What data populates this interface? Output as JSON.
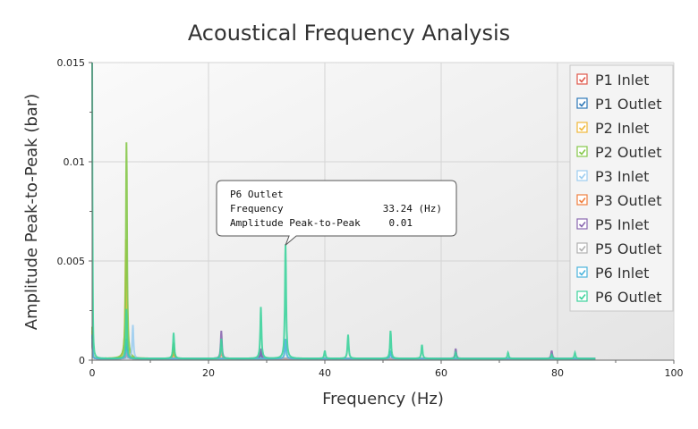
{
  "chart_data": {
    "type": "line",
    "title": "Acoustical Frequency Analysis",
    "xlabel": "Frequency (Hz)",
    "ylabel": "Amplitude Peak-to-Peak (bar)",
    "xlim": [
      0,
      100
    ],
    "ylim": [
      0,
      0.015
    ],
    "x_ticks": [
      "0",
      "20",
      "40",
      "60",
      "80",
      "100"
    ],
    "x_tick_values": [
      0,
      20,
      40,
      60,
      80,
      100
    ],
    "y_ticks": [
      "0",
      "0.005",
      "0.01",
      "0.015"
    ],
    "y_tick_values": [
      0,
      0.005,
      0.01,
      0.015
    ],
    "grid": true,
    "legend_position": "top-right",
    "x_max_data": 86.5,
    "series": [
      {
        "name": "P1 Inlet",
        "color": "#e0584a",
        "peaks": [
          [
            0,
            0.0012
          ],
          [
            5.9,
            0.0008
          ],
          [
            14,
            0.0004
          ]
        ]
      },
      {
        "name": "P1 Outlet",
        "color": "#2e78b8",
        "peaks": [
          [
            0,
            0.001
          ],
          [
            5.9,
            0.0006
          ],
          [
            29,
            0.0003
          ]
        ]
      },
      {
        "name": "P2 Inlet",
        "color": "#f0b83a",
        "peaks": [
          [
            0,
            0.0014
          ],
          [
            5.8,
            0.006
          ],
          [
            14,
            0.0005
          ]
        ]
      },
      {
        "name": "P2 Outlet",
        "color": "#86c84a",
        "peaks": [
          [
            0,
            0.0016
          ],
          [
            5.9,
            0.0109
          ],
          [
            14,
            0.0008
          ]
        ]
      },
      {
        "name": "P3 Inlet",
        "color": "#9ccdf0",
        "peaks": [
          [
            0,
            0.001
          ],
          [
            7.0,
            0.0017
          ],
          [
            51.3,
            0.0003
          ]
        ]
      },
      {
        "name": "P3 Outlet",
        "color": "#f08040",
        "peaks": [
          [
            0,
            0.001
          ],
          [
            5.9,
            0.0005
          ],
          [
            22.2,
            0.0004
          ]
        ]
      },
      {
        "name": "P5 Inlet",
        "color": "#8a68b0",
        "peaks": [
          [
            0,
            0.0012
          ],
          [
            6.0,
            0.0005
          ],
          [
            22.2,
            0.0014
          ],
          [
            29,
            0.0005
          ],
          [
            62.5,
            0.0005
          ],
          [
            79,
            0.0004
          ]
        ]
      },
      {
        "name": "P5 Outlet",
        "color": "#b0b0b0",
        "peaks": [
          [
            0,
            0.001
          ],
          [
            5.9,
            0.0004
          ],
          [
            22.2,
            0.0006
          ]
        ]
      },
      {
        "name": "P6 Inlet",
        "color": "#4cb4dc",
        "peaks": [
          [
            0,
            0.0012
          ],
          [
            5.9,
            0.001
          ],
          [
            33.24,
            0.001
          ],
          [
            51.3,
            0.0004
          ]
        ]
      },
      {
        "name": "P6 Outlet",
        "color": "#3dd39c",
        "peaks": [
          [
            0,
            0.015
          ],
          [
            5.9,
            0.0025
          ],
          [
            14,
            0.0013
          ],
          [
            22.2,
            0.001
          ],
          [
            29,
            0.0026
          ],
          [
            33.24,
            0.0058
          ],
          [
            40,
            0.0004
          ],
          [
            44,
            0.0012
          ],
          [
            51.3,
            0.0014
          ],
          [
            56.7,
            0.0007
          ],
          [
            62.5,
            0.0003
          ],
          [
            71.5,
            0.0003
          ],
          [
            79,
            0.0002
          ],
          [
            83,
            0.0003
          ]
        ]
      }
    ],
    "tooltip": {
      "series": "P6 Outlet",
      "frequency_label": "Frequency",
      "frequency_value": "33.24 (Hz)",
      "amplitude_label": "Amplitude Peak-to-Peak",
      "amplitude_value": "0.01",
      "x": 33.24,
      "y": 0.0058
    }
  }
}
